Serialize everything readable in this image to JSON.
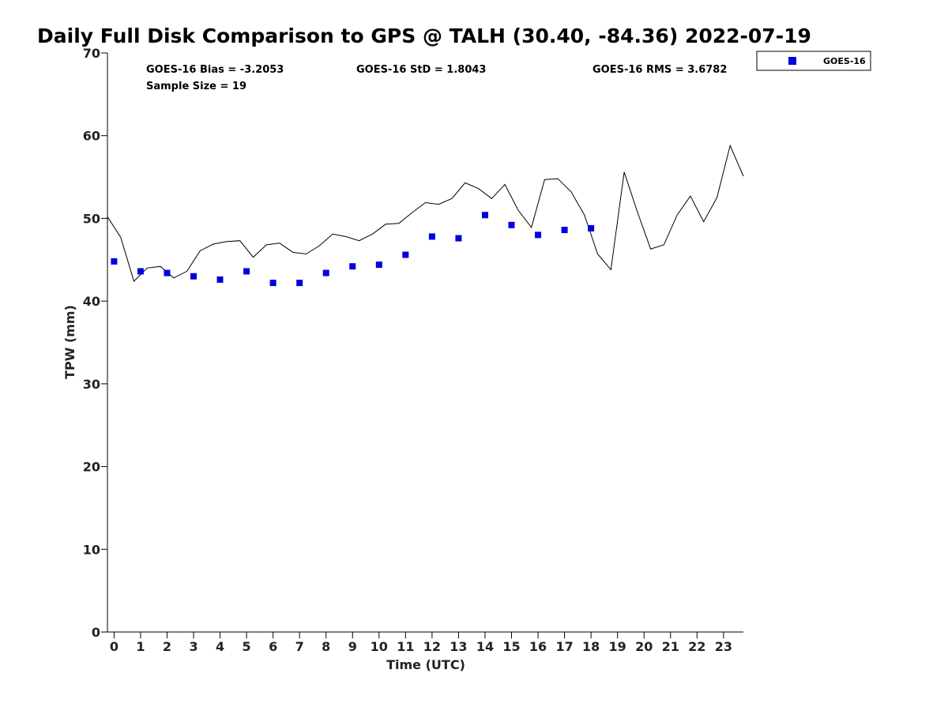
{
  "chart_data": {
    "type": "scatter",
    "title": "Daily Full Disk Comparison to GPS @ TALH (30.40, -84.36) 2022-07-19",
    "xlabel": "Time (UTC)",
    "ylabel": "TPW (mm)",
    "xlim": [
      -0.25,
      23.75
    ],
    "ylim": [
      0,
      70
    ],
    "x_ticks": [
      "0",
      "1",
      "2",
      "3",
      "4",
      "5",
      "6",
      "7",
      "8",
      "9",
      "10",
      "11",
      "12",
      "13",
      "14",
      "15",
      "16",
      "17",
      "18",
      "19",
      "20",
      "21",
      "22",
      "23"
    ],
    "y_ticks": [
      "0",
      "10",
      "20",
      "30",
      "40",
      "50",
      "60",
      "70"
    ],
    "grid": false,
    "legend_position": "top-right",
    "stats": {
      "bias": "GOES-16 Bias = -3.2053",
      "std": "GOES-16 StD = 1.8043",
      "rms": "GOES-16 RMS = 3.6782",
      "sample": "Sample Size = 19"
    },
    "series": [
      {
        "name": "GOES-16",
        "marker": "square",
        "color": "#0000dd",
        "x": [
          0,
          1,
          2,
          3,
          4,
          5,
          6,
          7,
          8,
          9,
          10,
          11,
          12,
          13,
          14,
          15,
          16,
          17,
          18
        ],
        "y": [
          44.8,
          43.6,
          43.4,
          43.0,
          42.6,
          43.6,
          42.2,
          42.2,
          43.4,
          44.2,
          44.4,
          45.6,
          47.8,
          47.6,
          50.4,
          49.2,
          48.0,
          48.6,
          48.8
        ]
      },
      {
        "type": "line",
        "color": "#000000",
        "x": [
          -0.25,
          0.25,
          0.75,
          1.25,
          1.75,
          2.25,
          2.75,
          3.25,
          3.75,
          4.25,
          4.75,
          5.25,
          5.75,
          6.25,
          6.75,
          7.25,
          7.75,
          8.25,
          8.75,
          9.25,
          9.75,
          10.25,
          10.75,
          11.25,
          11.75,
          12.25,
          12.75,
          13.25,
          13.75,
          14.25,
          14.75,
          15.25,
          15.75,
          16.25,
          16.75,
          17.25,
          17.75,
          18.25,
          18.75,
          19.25,
          19.75,
          20.25,
          20.75,
          21.25,
          21.75,
          22.25,
          22.75,
          23.25,
          23.75
        ],
        "y": [
          50.2,
          47.7,
          42.4,
          44.0,
          44.2,
          42.8,
          43.6,
          46.1,
          46.9,
          47.2,
          47.3,
          45.3,
          46.8,
          47.0,
          45.9,
          45.7,
          46.7,
          48.1,
          47.8,
          47.3,
          48.1,
          49.3,
          49.4,
          50.7,
          51.9,
          51.7,
          52.4,
          54.3,
          53.6,
          52.4,
          54.1,
          51.0,
          48.9,
          54.7,
          54.8,
          53.2,
          50.4,
          45.7,
          43.8,
          55.6,
          50.8,
          46.3,
          46.8,
          50.4,
          52.7,
          49.6,
          52.5,
          58.8,
          55.1
        ]
      }
    ]
  }
}
